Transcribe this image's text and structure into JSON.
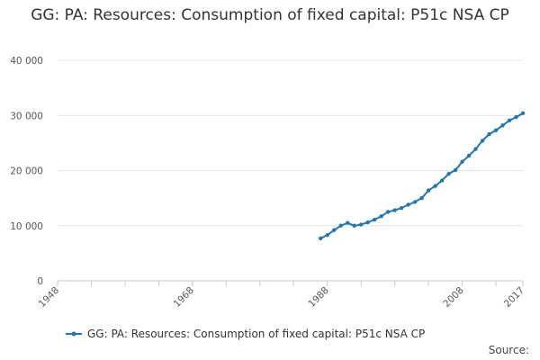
{
  "chart_data": {
    "type": "line",
    "title": "GG: PA: Resources: Consumption of fixed capital: P51c NSA CP",
    "xlabel": "",
    "ylabel": "",
    "xlim": [
      1948,
      2017
    ],
    "ylim": [
      0,
      40000
    ],
    "x_ticks": [
      1948,
      1968,
      1988,
      2008,
      2017
    ],
    "y_ticks": [
      0,
      10000,
      20000,
      30000,
      40000
    ],
    "x_tick_labels": [
      "1948",
      "1968",
      "1988",
      "2008",
      "2017"
    ],
    "y_tick_labels": [
      "0",
      "10 000",
      "20 000",
      "30 000",
      "40 000"
    ],
    "grid": "horizontal",
    "legend_position": "bottom",
    "series": [
      {
        "name": "GG: PA: Resources: Consumption of fixed capital: P51c NSA CP",
        "color": "#1f77b4",
        "x": [
          1987,
          1988,
          1989,
          1990,
          1991,
          1992,
          1993,
          1994,
          1995,
          1996,
          1997,
          1998,
          1999,
          2000,
          2001,
          2002,
          2003,
          2004,
          2005,
          2006,
          2007,
          2008,
          2009,
          2010,
          2011,
          2012,
          2013,
          2014,
          2015,
          2016,
          2017
        ],
        "values": [
          7700,
          8300,
          9200,
          10000,
          10500,
          10000,
          10200,
          10600,
          11100,
          11700,
          12500,
          12800,
          13200,
          13800,
          14300,
          15000,
          16400,
          17200,
          18200,
          19400,
          20100,
          21600,
          22700,
          23900,
          25400,
          26600,
          27300,
          28200,
          29100,
          29700,
          30400
        ]
      }
    ]
  },
  "source_label": "Source:"
}
